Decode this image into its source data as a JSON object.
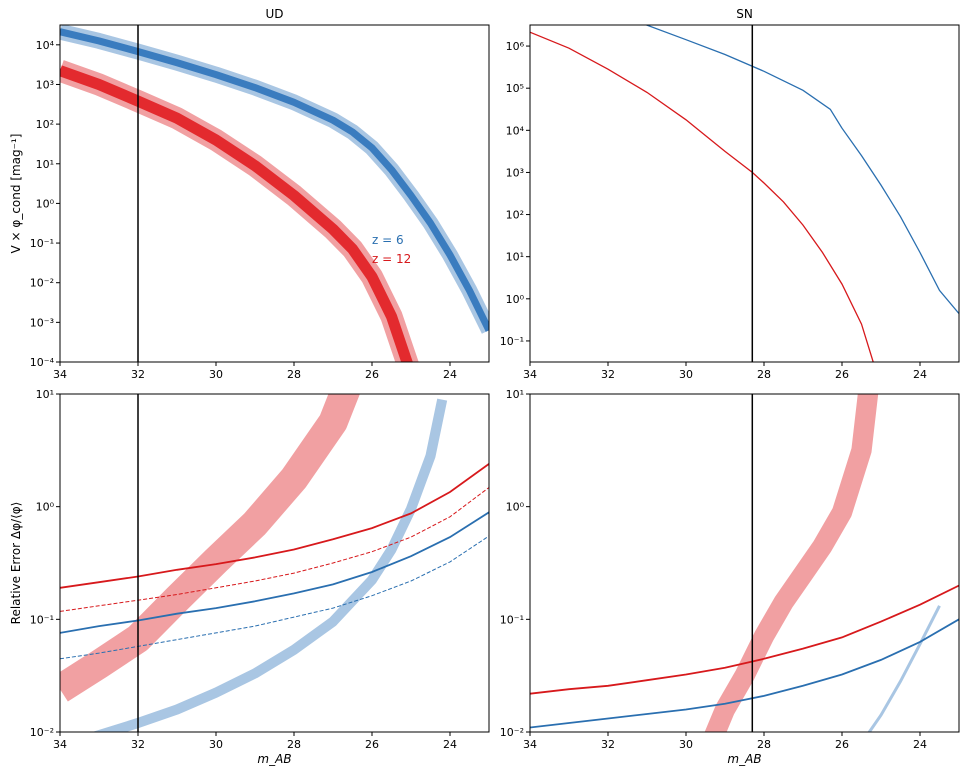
{
  "colors": {
    "blue": "#2a6fb0",
    "blue_light": "#a9c6e3",
    "blue_band": "#3a7cbf",
    "red": "#d7191c",
    "red_light": "#f1a0a2",
    "red_band": "#e32a2e",
    "vline": "#000000"
  },
  "chart_data": [
    {
      "id": "ud-top",
      "type": "line",
      "title": "UD",
      "xlabel": "",
      "ylabel": "V × φ_cond [mag⁻¹]",
      "xlim": [
        34,
        23
      ],
      "ylim_log10": [
        -4,
        4.5
      ],
      "yscale": "log",
      "xticks": [
        34,
        32,
        30,
        28,
        26,
        24
      ],
      "yticks_exp": [
        -4,
        -3,
        -2,
        -1,
        0,
        1,
        2,
        3,
        4
      ],
      "vline_x": 32,
      "annotations": [
        {
          "text": "z = 6",
          "color_key": "blue"
        },
        {
          "text": "z = 12",
          "color_key": "red"
        }
      ],
      "series": [
        {
          "name": "z = 6",
          "color_key": "blue_band",
          "kind": "band",
          "x": [
            34,
            33,
            32,
            31,
            30,
            29,
            28,
            27,
            26.5,
            26,
            25.5,
            25,
            24.5,
            24,
            23.5,
            23
          ],
          "y_log10": [
            4.33,
            4.1,
            3.83,
            3.55,
            3.25,
            2.92,
            2.55,
            2.1,
            1.8,
            1.4,
            0.85,
            0.2,
            -0.5,
            -1.3,
            -2.2,
            -3.2
          ],
          "halfwidth_inner": 0.09,
          "halfwidth_outer": 0.2
        },
        {
          "name": "z = 12",
          "color_key": "red_band",
          "kind": "band",
          "x": [
            34,
            33,
            32,
            31,
            30,
            29,
            28,
            27,
            26.5,
            26,
            25.5,
            25
          ],
          "y_log10": [
            3.35,
            3.0,
            2.58,
            2.15,
            1.6,
            0.95,
            0.2,
            -0.65,
            -1.15,
            -1.85,
            -2.85,
            -4.3
          ],
          "halfwidth_inner": 0.14,
          "halfwidth_outer": 0.28
        }
      ]
    },
    {
      "id": "sn-top",
      "type": "line",
      "title": "SN",
      "xlabel": "",
      "ylabel": "",
      "xlim": [
        34,
        23
      ],
      "ylim_log10": [
        -1.5,
        6.5
      ],
      "yscale": "log",
      "xticks": [
        34,
        32,
        30,
        28,
        26,
        24
      ],
      "yticks_exp": [
        -1,
        0,
        1,
        2,
        3,
        4,
        5,
        6
      ],
      "vline_x": 28.3,
      "series": [
        {
          "name": "",
          "color_key": "blue",
          "kind": "line",
          "x": [
            31.3,
            30,
            29,
            28,
            27,
            26.3,
            26,
            25.5,
            25,
            24.5,
            24,
            23.5,
            23
          ],
          "y_log10": [
            6.6,
            6.15,
            5.8,
            5.4,
            4.95,
            4.5,
            4.05,
            3.4,
            2.7,
            1.95,
            1.1,
            0.2,
            -0.35
          ]
        },
        {
          "name": "",
          "color_key": "red",
          "kind": "line",
          "x": [
            34,
            33,
            32,
            31,
            30,
            29,
            28.3,
            28,
            27.5,
            27,
            26.5,
            26,
            25.5,
            25.2
          ],
          "y_log10": [
            6.33,
            5.95,
            5.45,
            4.9,
            4.25,
            3.5,
            3.0,
            2.75,
            2.3,
            1.75,
            1.1,
            0.35,
            -0.6,
            -1.5
          ]
        }
      ]
    },
    {
      "id": "ud-bottom",
      "type": "line",
      "title": "",
      "xlabel": "m_AB",
      "ylabel": "Relative Error Δφ/⟨φ⟩",
      "xlim": [
        34,
        23
      ],
      "ylim_log10": [
        -2,
        1
      ],
      "yscale": "log",
      "xticks": [
        34,
        32,
        30,
        28,
        26,
        24
      ],
      "yticks_exp": [
        -2,
        -1,
        0,
        1
      ],
      "vline_x": 32,
      "series": [
        {
          "name": "",
          "color_key": "red_light",
          "kind": "band",
          "x": [
            34,
            33,
            32,
            31,
            30,
            29,
            28,
            27,
            26.6
          ],
          "y_log10": [
            -1.62,
            -1.4,
            -1.17,
            -0.82,
            -0.48,
            -0.15,
            0.25,
            0.75,
            1.1
          ],
          "halfwidth_outer": 0.13
        },
        {
          "name": "",
          "color_key": "blue_light",
          "kind": "band",
          "x": [
            33.2,
            32,
            31,
            30,
            29,
            28,
            27,
            26,
            25.5,
            25,
            24.5,
            24.2
          ],
          "y_log10": [
            -2.05,
            -1.92,
            -1.8,
            -1.65,
            -1.48,
            -1.27,
            -1.02,
            -0.65,
            -0.38,
            -0.02,
            0.45,
            0.95
          ],
          "halfwidth_outer": 0.045
        },
        {
          "name": "",
          "color_key": "red",
          "kind": "line",
          "x": [
            34,
            33,
            32,
            31,
            30,
            29,
            28,
            27,
            26,
            25,
            24,
            23
          ],
          "y_log10": [
            -0.72,
            -0.67,
            -0.62,
            -0.56,
            -0.51,
            -0.45,
            -0.38,
            -0.29,
            -0.19,
            -0.06,
            0.13,
            0.38
          ]
        },
        {
          "name": "",
          "color_key": "red",
          "kind": "dashed",
          "x": [
            34,
            33,
            32,
            31,
            30,
            29,
            28,
            27,
            26,
            25,
            24,
            23
          ],
          "y_log10": [
            -0.93,
            -0.88,
            -0.83,
            -0.78,
            -0.72,
            -0.66,
            -0.59,
            -0.5,
            -0.4,
            -0.27,
            -0.09,
            0.17
          ]
        },
        {
          "name": "",
          "color_key": "blue",
          "kind": "line",
          "x": [
            34,
            33,
            32,
            31,
            30,
            29,
            28,
            27,
            26,
            25,
            24,
            23
          ],
          "y_log10": [
            -1.12,
            -1.06,
            -1.01,
            -0.95,
            -0.9,
            -0.84,
            -0.77,
            -0.69,
            -0.58,
            -0.44,
            -0.27,
            -0.05
          ]
        },
        {
          "name": "",
          "color_key": "blue",
          "kind": "dashed",
          "x": [
            34,
            33,
            32,
            31,
            30,
            29,
            28,
            27,
            26,
            25,
            24,
            23
          ],
          "y_log10": [
            -1.35,
            -1.3,
            -1.24,
            -1.18,
            -1.12,
            -1.06,
            -0.98,
            -0.9,
            -0.79,
            -0.66,
            -0.49,
            -0.26
          ]
        }
      ]
    },
    {
      "id": "sn-bottom",
      "type": "line",
      "title": "",
      "xlabel": "m_AB",
      "ylabel": "",
      "xlim": [
        34,
        23
      ],
      "ylim_log10": [
        -2,
        1
      ],
      "yscale": "log",
      "xticks": [
        34,
        32,
        30,
        28,
        26,
        24
      ],
      "yticks_exp": [
        -2,
        -1,
        0,
        1
      ],
      "vline_x": 28.3,
      "series": [
        {
          "name": "",
          "color_key": "red_light",
          "kind": "band",
          "x": [
            29.3,
            29,
            28.5,
            28,
            27.5,
            27,
            26.5,
            26,
            25.5,
            25.3
          ],
          "y_log10": [
            -2.05,
            -1.8,
            -1.5,
            -1.15,
            -0.85,
            -0.6,
            -0.35,
            -0.05,
            0.5,
            1.1
          ],
          "halfwidth_outer": 0.09
        },
        {
          "name": "",
          "color_key": "blue_light",
          "kind": "line_light",
          "x": [
            25.4,
            25.2,
            25,
            24.5,
            24,
            23.5
          ],
          "y_log10": [
            -2.05,
            -1.95,
            -1.85,
            -1.55,
            -1.22,
            -0.88
          ]
        },
        {
          "name": "",
          "color_key": "red",
          "kind": "line",
          "x": [
            34,
            33,
            32,
            31,
            30,
            29,
            28,
            27,
            26,
            25,
            24,
            23
          ],
          "y_log10": [
            -1.66,
            -1.62,
            -1.59,
            -1.54,
            -1.49,
            -1.43,
            -1.35,
            -1.26,
            -1.16,
            -1.02,
            -0.87,
            -0.7
          ]
        },
        {
          "name": "",
          "color_key": "blue",
          "kind": "line",
          "x": [
            34,
            33,
            32,
            31,
            30,
            29,
            28,
            27,
            26,
            25,
            24,
            23
          ],
          "y_log10": [
            -1.96,
            -1.92,
            -1.88,
            -1.84,
            -1.8,
            -1.75,
            -1.68,
            -1.59,
            -1.49,
            -1.36,
            -1.2,
            -1.0
          ]
        }
      ]
    }
  ]
}
